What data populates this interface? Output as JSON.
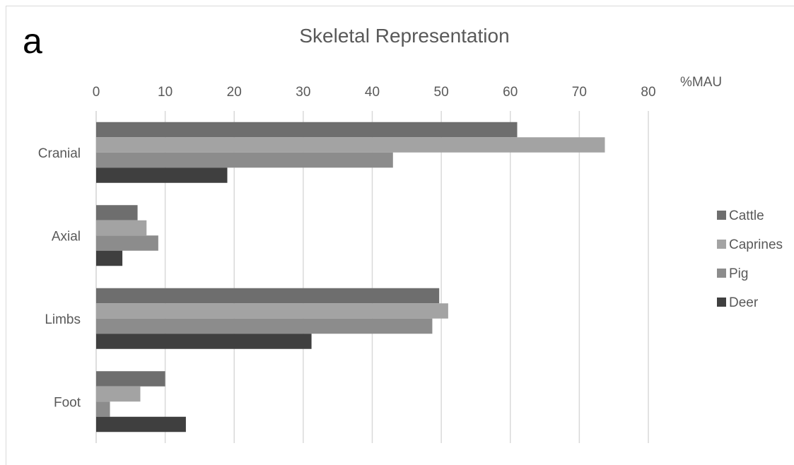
{
  "panel_label": "a",
  "chart_data": {
    "type": "bar",
    "orientation": "horizontal",
    "title": "Skeletal Representation",
    "xlabel": "%MAU",
    "ylabel": "",
    "xlim": [
      0,
      80
    ],
    "xticks": [
      0,
      10,
      20,
      30,
      40,
      50,
      60,
      70,
      80
    ],
    "categories": [
      "Cranial",
      "Axial",
      "Limbs",
      "Foot"
    ],
    "series": [
      {
        "name": "Cattle",
        "color": "#6e6e6e",
        "values": [
          61,
          6,
          49.7,
          10
        ]
      },
      {
        "name": "Caprines",
        "color": "#a3a3a3",
        "values": [
          73.7,
          7.3,
          51,
          6.4
        ]
      },
      {
        "name": "Pig",
        "color": "#8c8c8c",
        "values": [
          43,
          9,
          48.7,
          2
        ]
      },
      {
        "name": "Deer",
        "color": "#3f3f3f",
        "values": [
          19,
          3.8,
          31.2,
          13
        ]
      }
    ],
    "grid": "vertical",
    "legend_position": "right",
    "axis_position": "top"
  }
}
